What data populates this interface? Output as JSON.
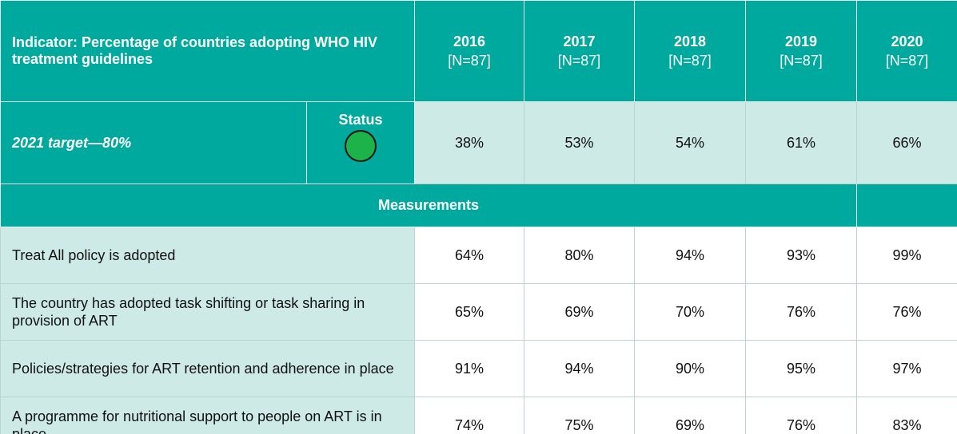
{
  "header": {
    "indicator": "Indicator: Percentage of countries adopting WHO HIV treatment guidelines",
    "years": [
      {
        "year": "2016",
        "n": "[N=87]"
      },
      {
        "year": "2017",
        "n": "[N=87]"
      },
      {
        "year": "2018",
        "n": "[N=87]"
      },
      {
        "year": "2019",
        "n": "[N=87]"
      },
      {
        "year": "2020",
        "n": "[N=87]"
      }
    ]
  },
  "target": {
    "label": "2021 target—80%",
    "status_label": "Status",
    "values": [
      "38%",
      "53%",
      "54%",
      "61%",
      "66%"
    ]
  },
  "measurements_title": "Measurements",
  "measurements": [
    {
      "label": "Treat All policy is adopted",
      "values": [
        "64%",
        "80%",
        "94%",
        "93%",
        "99%"
      ]
    },
    {
      "label": "The country has adopted task shifting or task sharing in provision of ART",
      "values": [
        "65%",
        "69%",
        "70%",
        "76%",
        "76%"
      ]
    },
    {
      "label": "Policies/strategies for ART retention and adherence in place",
      "values": [
        "91%",
        "94%",
        "90%",
        "95%",
        "97%"
      ]
    },
    {
      "label": "A programme for nutritional support to people on ART is in place",
      "values": [
        "74%",
        "75%",
        "69%",
        "76%",
        "83%"
      ]
    }
  ]
}
